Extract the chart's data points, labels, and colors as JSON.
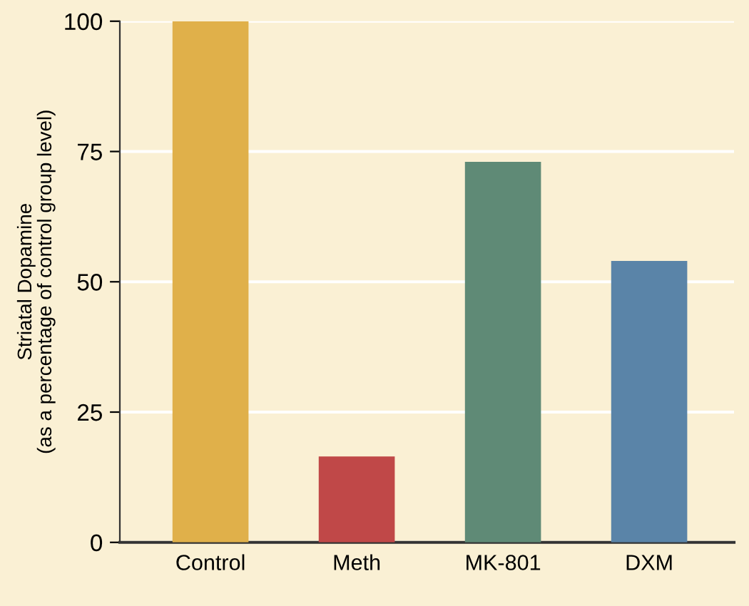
{
  "chart_data": {
    "type": "bar",
    "ylabel": "Striatal Dopamine\n(as a percentage of control group level)",
    "categories": [
      "Control",
      "Meth",
      "MK-801",
      "DXM"
    ],
    "values": [
      100,
      16.5,
      73,
      54
    ],
    "colors": [
      "#e0b04a",
      "#c04848",
      "#5f8a76",
      "#5a84a8"
    ],
    "ylim": [
      0,
      100
    ],
    "yticks": [
      0,
      25,
      50,
      75,
      100
    ],
    "grid": "y"
  }
}
